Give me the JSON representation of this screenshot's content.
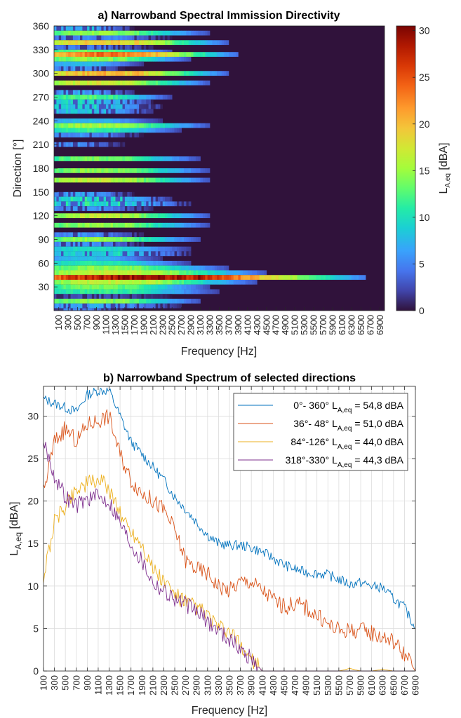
{
  "chart_data": [
    {
      "type": "heatmap",
      "title": "a) Narrowband Spectral Immission Directivity",
      "xlabel": "Frequency [Hz]",
      "ylabel": "Direction [°]",
      "xlim": [
        0,
        7000
      ],
      "ylim": [
        0,
        360
      ],
      "xticks": [
        "100",
        "300",
        "500",
        "700",
        "900",
        "1100",
        "1300",
        "1500",
        "1700",
        "1900",
        "2100",
        "2300",
        "2500",
        "2700",
        "2900",
        "3100",
        "3300",
        "3500",
        "3700",
        "3900",
        "4100",
        "4300",
        "4500",
        "4700",
        "4900",
        "5100",
        "5300",
        "5500",
        "5700",
        "5900",
        "6100",
        "6300",
        "6500",
        "6700",
        "6900"
      ],
      "yticks": [
        "30",
        "60",
        "90",
        "120",
        "150",
        "180",
        "210",
        "240",
        "270",
        "300",
        "330",
        "360"
      ],
      "colorbar": {
        "label": "L",
        "label_sub": "A,eq",
        "label_unit": " [dBA]",
        "range": [
          0,
          30.5
        ],
        "ticks": [
          "0",
          "5",
          "10",
          "15",
          "20",
          "25",
          "30"
        ],
        "colormap": "turbo"
      },
      "bands": [
        {
          "dir": [
            354,
            360
          ],
          "peak": 8,
          "extent_hz": 1700,
          "speckle": true
        },
        {
          "dir": [
            348,
            354
          ],
          "peak": 15,
          "extent_hz": 3300
        },
        {
          "dir": [
            342,
            348
          ],
          "peak": 6,
          "extent_hz": 2500,
          "speckle": true
        },
        {
          "dir": [
            336,
            342
          ],
          "peak": 20,
          "extent_hz": 3700
        },
        {
          "dir": [
            330,
            336
          ],
          "peak": 5,
          "extent_hz": 2100,
          "speckle": true
        },
        {
          "dir": [
            327,
            330
          ],
          "peak": 14,
          "extent_hz": 2500
        },
        {
          "dir": [
            321,
            327
          ],
          "peak": 24,
          "extent_hz": 3900
        },
        {
          "dir": [
            315,
            321
          ],
          "peak": 15,
          "extent_hz": 2900
        },
        {
          "dir": [
            309,
            315
          ],
          "peak": 8,
          "extent_hz": 1900
        },
        {
          "dir": [
            303,
            309
          ],
          "peak": 6,
          "extent_hz": 1500,
          "speckle": true
        },
        {
          "dir": [
            297,
            303
          ],
          "peak": 21,
          "extent_hz": 3700
        },
        {
          "dir": [
            285,
            291
          ],
          "peak": 18,
          "extent_hz": 3300
        },
        {
          "dir": [
            273,
            279
          ],
          "peak": 7,
          "extent_hz": 1700,
          "speckle": true
        },
        {
          "dir": [
            267,
            273
          ],
          "peak": 13,
          "extent_hz": 2500
        },
        {
          "dir": [
            261,
            267
          ],
          "peak": 10,
          "extent_hz": 2100,
          "speckle": true
        },
        {
          "dir": [
            255,
            261
          ],
          "peak": 10,
          "extent_hz": 2300,
          "speckle": true
        },
        {
          "dir": [
            249,
            255
          ],
          "peak": 9,
          "extent_hz": 2100,
          "speckle": true
        },
        {
          "dir": [
            237,
            243
          ],
          "peak": 8,
          "extent_hz": 2300
        },
        {
          "dir": [
            231,
            237
          ],
          "peak": 16,
          "extent_hz": 3300
        },
        {
          "dir": [
            225,
            231
          ],
          "peak": 12,
          "extent_hz": 2700
        },
        {
          "dir": [
            219,
            225
          ],
          "peak": 6,
          "extent_hz": 1900,
          "speckle": true
        },
        {
          "dir": [
            207,
            213
          ],
          "peak": 6,
          "extent_hz": 1500,
          "speckle": true
        },
        {
          "dir": [
            189,
            195
          ],
          "peak": 14,
          "extent_hz": 3100
        },
        {
          "dir": [
            174,
            180
          ],
          "peak": 15,
          "extent_hz": 3300
        },
        {
          "dir": [
            162,
            168
          ],
          "peak": 17,
          "extent_hz": 3300
        },
        {
          "dir": [
            144,
            150
          ],
          "peak": 7,
          "extent_hz": 1700,
          "speckle": true
        },
        {
          "dir": [
            138,
            144
          ],
          "peak": 11,
          "extent_hz": 2500,
          "speckle": true
        },
        {
          "dir": [
            132,
            138
          ],
          "peak": 11,
          "extent_hz": 2900,
          "speckle": true
        },
        {
          "dir": [
            126,
            132
          ],
          "peak": 6,
          "extent_hz": 2100,
          "speckle": true
        },
        {
          "dir": [
            117,
            123
          ],
          "peak": 17,
          "extent_hz": 3300
        },
        {
          "dir": [
            105,
            111
          ],
          "peak": 15,
          "extent_hz": 3300
        },
        {
          "dir": [
            93,
            99
          ],
          "peak": 6,
          "extent_hz": 1900,
          "speckle": true
        },
        {
          "dir": [
            87,
            93
          ],
          "peak": 15,
          "extent_hz": 3100
        },
        {
          "dir": [
            81,
            87
          ],
          "peak": 6,
          "extent_hz": 1900,
          "speckle": true
        },
        {
          "dir": [
            75,
            81
          ],
          "peak": 10,
          "extent_hz": 2900
        },
        {
          "dir": [
            69,
            75
          ],
          "peak": 10,
          "extent_hz": 2900,
          "speckle": true
        },
        {
          "dir": [
            63,
            69
          ],
          "peak": 8,
          "extent_hz": 2300
        },
        {
          "dir": [
            57,
            63
          ],
          "peak": 11,
          "extent_hz": 2900
        },
        {
          "dir": [
            51,
            57
          ],
          "peak": 15,
          "extent_hz": 3700
        },
        {
          "dir": [
            45,
            51
          ],
          "peak": 17,
          "extent_hz": 4500
        },
        {
          "dir": [
            39,
            45
          ],
          "peak": 30,
          "extent_hz": 6600
        },
        {
          "dir": [
            33,
            39
          ],
          "peak": 17,
          "extent_hz": 4300
        },
        {
          "dir": [
            27,
            33
          ],
          "peak": 14,
          "extent_hz": 3300
        },
        {
          "dir": [
            21,
            27
          ],
          "peak": 12,
          "extent_hz": 3500
        },
        {
          "dir": [
            15,
            21
          ],
          "peak": 3,
          "extent_hz": 2500,
          "speckle": true
        },
        {
          "dir": [
            9,
            15
          ],
          "peak": 15,
          "extent_hz": 3100
        },
        {
          "dir": [
            3,
            9
          ],
          "peak": 7,
          "extent_hz": 2700,
          "speckle": true
        },
        {
          "dir": [
            0,
            3
          ],
          "peak": 5,
          "extent_hz": 1500,
          "speckle": true
        }
      ]
    },
    {
      "type": "line",
      "title": "b) Narrowband Spectrum of selected directions",
      "xlabel": "Frequency [Hz]",
      "ylabel": "L",
      "ylabel_sub": "A,eq",
      "ylabel_unit": " [dBA]",
      "xlim": [
        100,
        6900
      ],
      "ylim": [
        0,
        33.5
      ],
      "grid": true,
      "legend_position": "top-right",
      "xticks": [
        "100",
        "300",
        "500",
        "700",
        "900",
        "1100",
        "1300",
        "1500",
        "1700",
        "1900",
        "2100",
        "2300",
        "2500",
        "2700",
        "2900",
        "3100",
        "3300",
        "3500",
        "3700",
        "3900",
        "4100",
        "4300",
        "4500",
        "4700",
        "4900",
        "5100",
        "5300",
        "5500",
        "5700",
        "5900",
        "6100",
        "6300",
        "6500",
        "6700",
        "6900"
      ],
      "yticks": [
        "0",
        "5",
        "10",
        "15",
        "20",
        "25",
        "30"
      ],
      "x": [
        100,
        300,
        500,
        700,
        900,
        1100,
        1300,
        1500,
        1700,
        1900,
        2100,
        2300,
        2500,
        2700,
        2900,
        3100,
        3300,
        3500,
        3700,
        3900,
        4100,
        4300,
        4500,
        4700,
        4900,
        5100,
        5300,
        5500,
        5700,
        5900,
        6100,
        6300,
        6500,
        6700,
        6900
      ],
      "series": [
        {
          "name": "0°- 360°",
          "leq_label": "L",
          "leq_sub": "A,eq",
          "leq_value": " = 54,8 dBA",
          "color": "#0072BD",
          "values": [
            32,
            31.5,
            31,
            30.5,
            32.5,
            33,
            33,
            30,
            27,
            25.5,
            24,
            22.5,
            20.5,
            19,
            17.5,
            16,
            15,
            14.8,
            14.8,
            14.5,
            14,
            13.3,
            12.5,
            12,
            11.6,
            11.5,
            11.3,
            10.8,
            10.2,
            10.4,
            10,
            9.8,
            8.5,
            7.5,
            5
          ]
        },
        {
          "name": "36°-  48°",
          "leq_label": "L",
          "leq_sub": "A,eq",
          "leq_value": " = 51,0 dBA",
          "color": "#D95319",
          "values": [
            21,
            27,
            28.5,
            27,
            29,
            29.5,
            30,
            25.5,
            22.5,
            21,
            20,
            19,
            16.5,
            13,
            12,
            11.5,
            10,
            9.5,
            10.5,
            10.5,
            9.5,
            8.5,
            7.5,
            8,
            7.5,
            6.5,
            5.5,
            4.8,
            4.8,
            4.8,
            4.5,
            4,
            3.5,
            2,
            0
          ]
        },
        {
          "name": "84°-126°",
          "leq_label": "L",
          "leq_sub": "A,eq",
          "leq_value": " = 44,0 dBA",
          "color": "#EDB120",
          "values": [
            11,
            17.5,
            19.5,
            21.5,
            22,
            22.5,
            21.5,
            18.5,
            16.5,
            15,
            12,
            10.5,
            9,
            8,
            7.5,
            6.5,
            5,
            4.5,
            3,
            1.5,
            0,
            0,
            0,
            0,
            0,
            0,
            0,
            0,
            0.3,
            0,
            0,
            0.2,
            0,
            0,
            0
          ]
        },
        {
          "name": "318°-330°",
          "leq_label": "L",
          "leq_sub": "A,eq",
          "leq_value": " = 44,3 dBA",
          "color": "#7E2F8E",
          "values": [
            27,
            23,
            20.5,
            19.5,
            20.3,
            20.5,
            20,
            17.5,
            15,
            13,
            10.5,
            9.5,
            8.5,
            7.8,
            7,
            5.8,
            4.8,
            3.8,
            2.5,
            1.5,
            0,
            0,
            0,
            0,
            0,
            0,
            0,
            0,
            0,
            0,
            0,
            0,
            0,
            0,
            0
          ]
        }
      ]
    }
  ]
}
